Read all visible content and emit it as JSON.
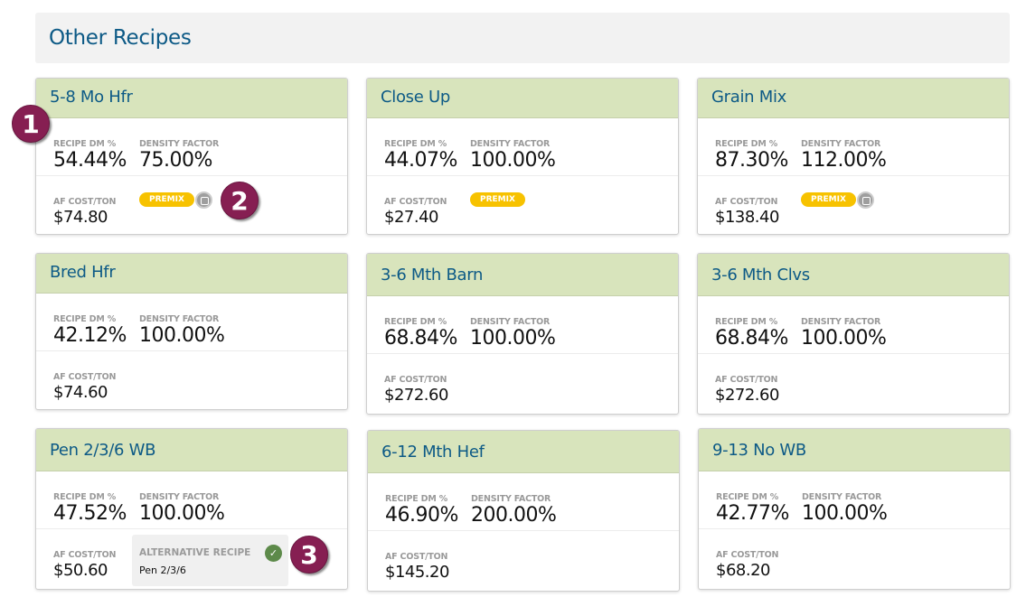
{
  "section_title": "Other Recipes",
  "labels": {
    "dm": "RECIPE DM %",
    "density": "DENSITY FACTOR",
    "cost": "AF COST/TON",
    "premix": "PREMIX",
    "alt": "ALTERNATIVE RECIPE"
  },
  "cards": [
    {
      "name": "5-8 Mo Hfr",
      "dm": "54.44%",
      "density": "75.00%",
      "cost": "$74.80",
      "premix": true,
      "note": true
    },
    {
      "name": "Close Up",
      "dm": "44.07%",
      "density": "100.00%",
      "cost": "$27.40",
      "premix": true
    },
    {
      "name": "Grain Mix",
      "dm": "87.30%",
      "density": "112.00%",
      "cost": "$138.40",
      "premix": true,
      "note": true
    },
    {
      "name": "Bred Hfr",
      "dm": "42.12%",
      "density": "100.00%",
      "cost": "$74.60"
    },
    {
      "name": "3-6 Mth Barn",
      "dm": "68.84%",
      "density": "100.00%",
      "cost": "$272.60"
    },
    {
      "name": "3-6 Mth Clvs",
      "dm": "68.84%",
      "density": "100.00%",
      "cost": "$272.60"
    },
    {
      "name": "Pen 2/3/6 WB",
      "dm": "47.52%",
      "density": "100.00%",
      "cost": "$50.60",
      "alternative": "Pen 2/3/6"
    },
    {
      "name": "6-12 Mth Hef",
      "dm": "46.90%",
      "density": "200.00%",
      "cost": "$145.20"
    },
    {
      "name": "9-13 No WB",
      "dm": "42.77%",
      "density": "100.00%",
      "cost": "$68.20"
    }
  ],
  "callouts": [
    "1",
    "2",
    "3"
  ],
  "colors": {
    "header_bg": "#d8e4bc",
    "title": "#0d5a86",
    "premix": "#f7c200",
    "callout": "#861f52",
    "check": "#5d8a4a"
  }
}
